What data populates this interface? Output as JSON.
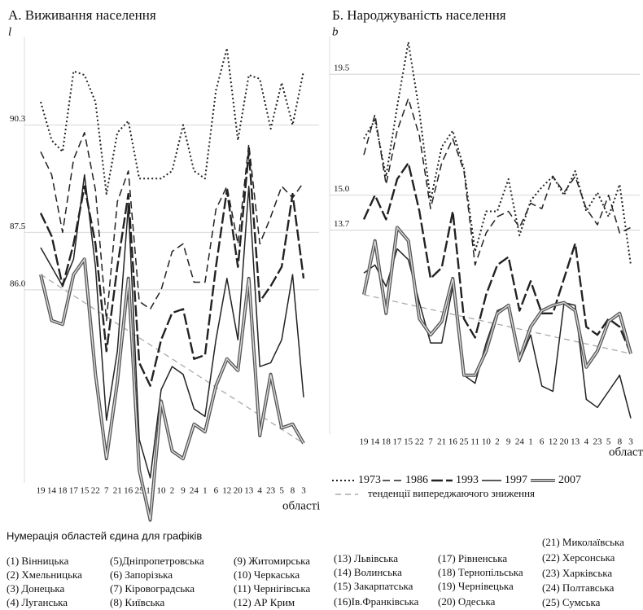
{
  "chart_data": [
    {
      "type": "line",
      "title": "А. Виживання населення",
      "ylabel": "l",
      "xlabel": "області",
      "categories": [
        "19",
        "14",
        "18",
        "17",
        "15",
        "22",
        "7",
        "21",
        "16",
        "25",
        "11",
        "10",
        "2",
        "9",
        "24",
        "1",
        "6",
        "12",
        "20",
        "13",
        "4",
        "23",
        "5",
        "8",
        "3"
      ],
      "ylim": [
        79.8,
        92.6
      ],
      "yticks": [
        {
          "value": 86,
          "label": "86.0"
        },
        87.5,
        90.3
      ],
      "grid": true,
      "series": [
        {
          "style": "dotted",
          "color": "#222",
          "values": [
            90.9,
            89.9,
            89.6,
            91.7,
            91.6,
            90.9,
            88.5,
            90.1,
            90.4,
            88.9,
            88.9,
            88.9,
            89.1,
            90.3,
            89.1,
            88.9,
            91.2,
            92.3,
            89.9,
            91.6,
            91.5,
            90.2,
            91.4,
            90.3,
            91.7
          ]
        },
        {
          "style": "dashed",
          "color": "#222",
          "values": [
            89.6,
            89.0,
            87.5,
            89.4,
            90.1,
            88.6,
            85.2,
            88.3,
            89.1,
            85.7,
            85.5,
            86.0,
            87.0,
            87.2,
            86.2,
            86.2,
            88.1,
            88.7,
            87.2,
            89.8,
            87.2,
            87.9,
            88.7,
            88.4,
            88.8
          ]
        },
        {
          "style": "thick-dashed",
          "color": "#222",
          "values": [
            88.0,
            87.4,
            86.1,
            87.2,
            88.7,
            87.2,
            84.4,
            86.6,
            88.5,
            84.1,
            83.5,
            84.7,
            85.4,
            85.5,
            84.2,
            84.3,
            86.6,
            88.6,
            86.6,
            89.6,
            85.7,
            86.1,
            86.6,
            88.5,
            86.3
          ]
        },
        {
          "style": "solid",
          "color": "#222",
          "values": [
            87.1,
            86.6,
            86.1,
            86.8,
            89.0,
            86.6,
            82.6,
            84.4,
            88.2,
            82.1,
            81.1,
            83.4,
            84.0,
            83.8,
            82.9,
            82.7,
            84.7,
            86.3,
            84.7,
            88.7,
            84.0,
            84.1,
            84.7,
            86.4,
            83.2
          ]
        },
        {
          "style": "double",
          "color": "#555",
          "values": [
            86.4,
            85.2,
            85.1,
            86.4,
            86.8,
            83.8,
            81.6,
            83.6,
            86.3,
            81.3,
            80.0,
            83.1,
            81.8,
            81.6,
            82.5,
            82.3,
            83.5,
            84.2,
            83.9,
            86.3,
            82.2,
            83.8,
            82.4,
            82.5,
            82.0
          ]
        }
      ],
      "trend": {
        "color": "#aaa",
        "values": [
          86.4,
          82.0
        ]
      }
    },
    {
      "type": "line",
      "title": "Б.  Народжуваність населення",
      "ylabel": "b",
      "xlabel": "області",
      "categories": [
        "19",
        "14",
        "18",
        "17",
        "15",
        "22",
        "7",
        "21",
        "16",
        "25",
        "11",
        "10",
        "2",
        "9",
        "24",
        "1",
        "6",
        "12",
        "20",
        "13",
        "4",
        "23",
        "5",
        "8",
        "3"
      ],
      "ylim": [
        6.2,
        20.9
      ],
      "yticks": [
        13.7,
        {
          "value": 15,
          "label": "15.0"
        },
        19.5
      ],
      "grid": true,
      "series": [
        {
          "style": "dotted",
          "color": "#222",
          "values": [
            17.1,
            17.8,
            15.7,
            18.3,
            20.7,
            18.1,
            14.8,
            16.8,
            17.4,
            16.0,
            12.9,
            14.4,
            14.4,
            15.6,
            13.5,
            14.8,
            15.3,
            15.7,
            15.0,
            15.9,
            14.4,
            15.1,
            14.2,
            15.4,
            12.4
          ]
        },
        {
          "style": "dashed",
          "color": "#222",
          "values": [
            16.5,
            18.0,
            15.4,
            17.4,
            18.6,
            17.2,
            14.5,
            16.2,
            17.1,
            15.9,
            12.4,
            13.6,
            14.2,
            14.4,
            13.8,
            14.7,
            14.5,
            15.7,
            15.1,
            15.7,
            14.5,
            13.9,
            15.0,
            13.6,
            13.8
          ]
        },
        {
          "style": "thick-dashed",
          "color": "#222",
          "values": [
            14.1,
            15.0,
            14.1,
            15.6,
            16.2,
            14.4,
            11.9,
            12.3,
            14.4,
            10.4,
            9.7,
            11.3,
            12.4,
            12.7,
            10.7,
            11.8,
            10.6,
            10.6,
            11.9,
            13.2,
            10.1,
            9.8,
            10.4,
            10.1,
            9.1
          ]
        },
        {
          "style": "solid",
          "color": "#222",
          "values": [
            12.1,
            12.4,
            11.6,
            13.0,
            12.6,
            11.0,
            9.5,
            9.5,
            11.6,
            8.3,
            8.0,
            9.5,
            10.7,
            10.9,
            8.8,
            9.8,
            7.9,
            7.7,
            11.0,
            10.9,
            7.4,
            7.1,
            7.7,
            8.3,
            6.7
          ]
        },
        {
          "style": "double",
          "color": "#555",
          "values": [
            11.3,
            13.3,
            10.6,
            13.8,
            13.3,
            10.4,
            9.8,
            10.3,
            11.9,
            8.3,
            8.3,
            9.2,
            10.6,
            10.9,
            8.9,
            10.1,
            10.7,
            10.9,
            11.0,
            10.7,
            8.6,
            9.2,
            10.3,
            10.6,
            9.1
          ]
        }
      ],
      "trend": {
        "color": "#aaa",
        "values": [
          11.3,
          9.1
        ]
      }
    }
  ],
  "legend": {
    "items": [
      "1973",
      "1986",
      "1993",
      "1997",
      "2007"
    ],
    "trend": "тенденції випереджаючого зниження"
  },
  "notes": {
    "title": "Нумерація областей єдина для графіків",
    "regions": [
      "(1) Вінницька",
      "(2) Хмельницька",
      "(3) Донецька",
      "(4) Луганська",
      "(5)Дніпропетровська",
      "(6) Запорізька",
      "(7) Кіровоградська",
      "(8) Київська",
      "(9) Житомирська",
      "(10) Черкаська",
      "(11) Чернігівська",
      "(12) АР Крим",
      "(13) Львівська",
      "(14) Волинська",
      "(15) Закарпатська",
      "(16)Ів.Франківська",
      "(17) Рівненська",
      "(18) Тернопільська",
      "(19) Чернівецька",
      "(20) Одеська",
      "(21) Миколаївська",
      "(22) Херсонська",
      "(23) Харківська",
      "(24) Полтавська",
      "(25) Сумська"
    ]
  }
}
